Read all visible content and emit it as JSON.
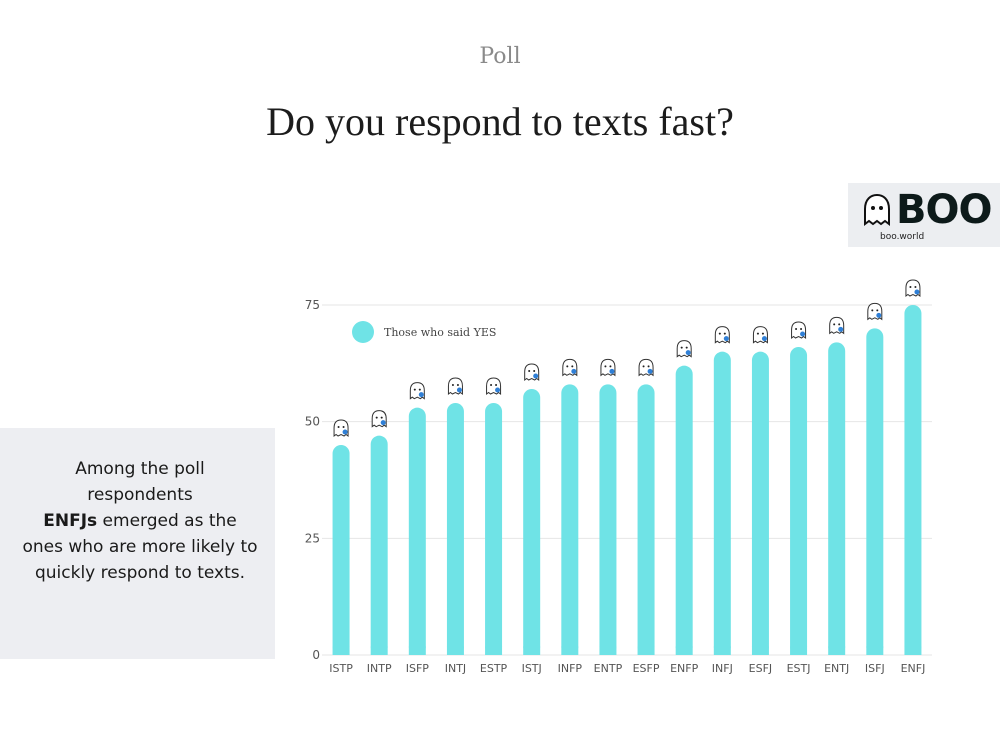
{
  "header": {
    "kicker": "Poll",
    "title": "Do you respond to texts fast?"
  },
  "brand": {
    "name": "BOO",
    "site": "boo.world"
  },
  "note": {
    "line_start": "Among the poll respondents",
    "highlight": "ENFJs",
    "line_end": "emerged as the ones who are more likely to quickly respond to texts."
  },
  "colors": {
    "bar": "#6fe3e6",
    "accent": "#2f7fd6",
    "grid": "#e6e6e6"
  },
  "chart_data": {
    "type": "bar",
    "categories": [
      "ISTP",
      "INTP",
      "ISFP",
      "INTJ",
      "ESTP",
      "ISTJ",
      "INFP",
      "ENTP",
      "ESFP",
      "ENFP",
      "INFJ",
      "ESFJ",
      "ESTJ",
      "ENTJ",
      "ISFJ",
      "ENFJ"
    ],
    "series": [
      {
        "name": "Those who said YES",
        "values": [
          45,
          47,
          53,
          54,
          54,
          57,
          58,
          58,
          58,
          62,
          65,
          65,
          66,
          67,
          70,
          75
        ]
      }
    ],
    "yticks": [
      0,
      25,
      50,
      75
    ],
    "ylim": [
      0,
      75
    ],
    "legend_position": "top-left",
    "grid": true,
    "bar_decoration": "ghost-icon"
  }
}
